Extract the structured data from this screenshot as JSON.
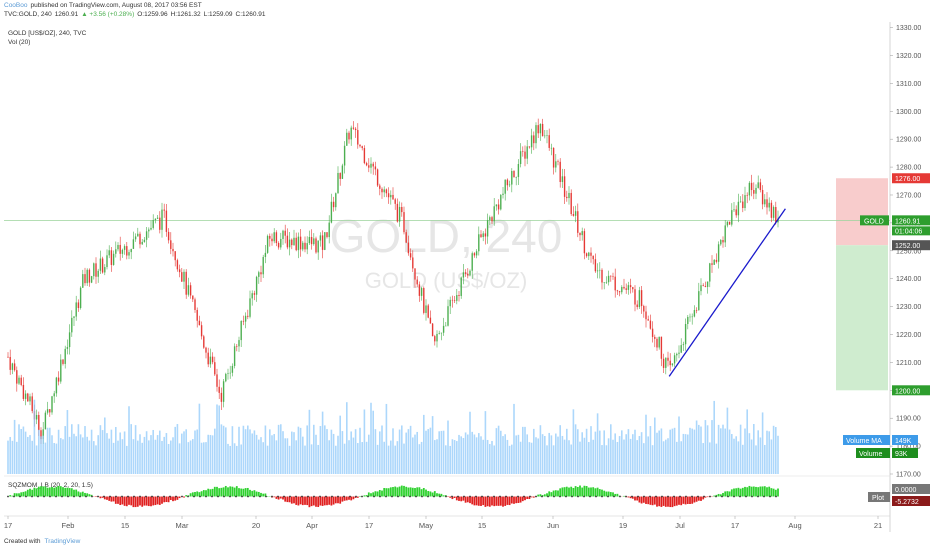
{
  "header": {
    "author": "CooBoo",
    "published": "published on TradingView.com, August 08, 2017 03:56 EST",
    "symbol_line": "TVC:GOLD, 240",
    "last": "1260.91",
    "change": "▲ +3.56 (+0.28%)",
    "o": "O:1259.96",
    "h": "H:1261.32",
    "l": "L:1259.09",
    "c": "C:1260.91"
  },
  "legend": {
    "title": "GOLD [US$/OZ], 240, TVC",
    "vol": "Vol (20)",
    "osc": "SQZMOM_LB (20, 2, 20, 1.5)"
  },
  "watermark": {
    "symbol": "GOLD, 240",
    "name": "GOLD (US$/OZ)"
  },
  "colors": {
    "up": "#4caf50",
    "down": "#e53935",
    "trendline": "#1a1acc",
    "volume": "#90caf9",
    "stop_zone": "#f8cccc",
    "target_zone": "#cfeccf",
    "price_line": "#9bd39b"
  },
  "chart_data": {
    "type": "candlestick",
    "y_axis": {
      "range": [
        1170,
        1332
      ],
      "ticks": [
        1170,
        1180,
        1190,
        1200,
        1210,
        1220,
        1230,
        1240,
        1250,
        1260,
        1270,
        1280,
        1290,
        1300,
        1310,
        1320,
        1330
      ]
    },
    "x_ticks": [
      "17",
      "Feb",
      "15",
      "Mar",
      "20",
      "Apr",
      "17",
      "May",
      "15",
      "Jun",
      "19",
      "Jul",
      "17",
      "Aug",
      "21"
    ],
    "price_path": [
      {
        "date": "2017-01-17",
        "close": 1212
      },
      {
        "date": "2017-01-26",
        "close": 1185
      },
      {
        "date": "2017-02-06",
        "close": 1240
      },
      {
        "date": "2017-02-27",
        "close": 1262
      },
      {
        "date": "2017-03-14",
        "close": 1198
      },
      {
        "date": "2017-03-27",
        "close": 1255
      },
      {
        "date": "2017-04-10",
        "close": 1252
      },
      {
        "date": "2017-04-17",
        "close": 1294
      },
      {
        "date": "2017-05-01",
        "close": 1260
      },
      {
        "date": "2017-05-09",
        "close": 1216
      },
      {
        "date": "2017-05-24",
        "close": 1262
      },
      {
        "date": "2017-06-06",
        "close": 1296
      },
      {
        "date": "2017-06-20",
        "close": 1244
      },
      {
        "date": "2017-07-03",
        "close": 1232
      },
      {
        "date": "2017-07-10",
        "close": 1206
      },
      {
        "date": "2017-07-26",
        "close": 1262
      },
      {
        "date": "2017-08-01",
        "close": 1274
      },
      {
        "date": "2017-08-08",
        "close": 1260.91
      }
    ],
    "trendline": [
      {
        "date": "2017-07-10",
        "price": 1205
      },
      {
        "date": "2017-08-08",
        "price": 1264
      }
    ],
    "position": {
      "stop": 1276.0,
      "entry": 1252.0,
      "target": 1200.0
    },
    "price_labels": {
      "stop": "1276.00",
      "entry": "1252.00",
      "target": "1200.00",
      "last": "1260.91",
      "symbol": "GOLD",
      "countdown": "01:04:06"
    },
    "volume_labels": {
      "ma_name": "Volume MA",
      "ma_value": "149K",
      "vol_name": "Volume",
      "vol_value": "93K"
    },
    "osc_labels": {
      "zero": "0.0000",
      "plot_name": "Plot",
      "plot_value": "-5.2732"
    }
  },
  "footer": {
    "created": "Created with",
    "brand": "TradingView"
  }
}
